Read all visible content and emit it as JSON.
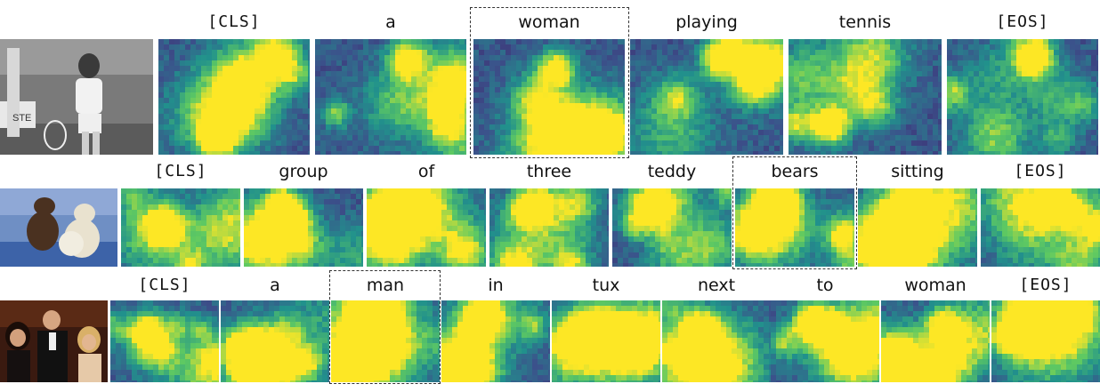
{
  "rows": [
    {
      "tokens": [
        "[CLS]",
        "a",
        "woman",
        "playing",
        "tennis",
        "[EOS]"
      ],
      "highlighted_token": "woman",
      "photo_subject": "woman-playing-tennis"
    },
    {
      "tokens": [
        "[CLS]",
        "group",
        "of",
        "three",
        "teddy",
        "bears",
        "sitting",
        "[EOS]"
      ],
      "highlighted_token": "bears",
      "photo_subject": "teddy-bears-on-blue-couch"
    },
    {
      "tokens": [
        "[CLS]",
        "a",
        "man",
        "in",
        "tux",
        "next",
        "to",
        "woman",
        "[EOS]"
      ],
      "highlighted_token": "man",
      "photo_subject": "man-in-tux-with-women"
    }
  ],
  "colormap": [
    "#440154",
    "#3b528b",
    "#21918c",
    "#5ec962",
    "#fde725"
  ]
}
